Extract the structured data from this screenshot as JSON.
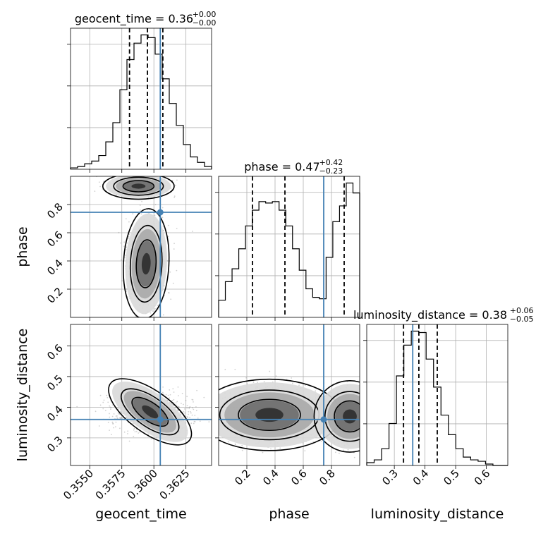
{
  "chart_data": {
    "type": "corner",
    "truth_color": "#4682b4",
    "parameters": [
      {
        "name": "geocent_time",
        "label": "geocent_time",
        "range": [
          0.3535,
          0.3645
        ],
        "ticks": [
          0.355,
          0.3575,
          0.36,
          0.3625
        ],
        "tick_labels": [
          "0.3550",
          "0.3575",
          "0.3600",
          "0.3625"
        ],
        "truth": 0.3605,
        "quantiles": [
          0.3581,
          0.3595,
          0.3607
        ],
        "title": {
          "text": "geocent_time = 0.36",
          "sup": "+0.00",
          "sub": "−0.00"
        },
        "hist": [
          1,
          2,
          4,
          6,
          10,
          20,
          34,
          58,
          80,
          92,
          98,
          96,
          84,
          66,
          48,
          32,
          18,
          9,
          5,
          2
        ]
      },
      {
        "name": "phase",
        "label": "phase",
        "range": [
          0.0,
          1.0
        ],
        "ticks": [
          0.2,
          0.4,
          0.6,
          0.8
        ],
        "tick_labels": [
          "0.2",
          "0.4",
          "0.6",
          "0.8"
        ],
        "truth": 0.745,
        "quantiles": [
          0.24,
          0.47,
          0.89
        ],
        "title": {
          "text": "phase = 0.47",
          "sup": "+0.42",
          "sub": "−0.23"
        },
        "hist": [
          12,
          25,
          34,
          48,
          64,
          75,
          81,
          80,
          81,
          75,
          64,
          48,
          33,
          20,
          14,
          13,
          42,
          67,
          78,
          94,
          87
        ]
      },
      {
        "name": "luminosity_distance",
        "label": "luminosity_distance",
        "range": [
          0.21,
          0.67
        ],
        "ticks": [
          0.3,
          0.4,
          0.5,
          0.6
        ],
        "tick_labels": [
          "0.3",
          "0.4",
          "0.5",
          "0.6"
        ],
        "truth": 0.36,
        "quantiles": [
          0.33,
          0.38,
          0.44
        ],
        "title": {
          "text": "luminosity_distance = 0.38",
          "sup": "+0.06",
          "sub": "−0.05"
        },
        "hist": [
          2,
          4,
          12,
          30,
          64,
          86,
          96,
          95,
          76,
          56,
          36,
          22,
          12,
          6,
          4,
          3,
          1,
          0,
          0
        ]
      }
    ],
    "pairs": [
      {
        "x": "geocent_time",
        "y": "phase"
      },
      {
        "x": "geocent_time",
        "y": "luminosity_distance"
      },
      {
        "x": "phase",
        "y": "luminosity_distance"
      }
    ],
    "grid": true
  }
}
